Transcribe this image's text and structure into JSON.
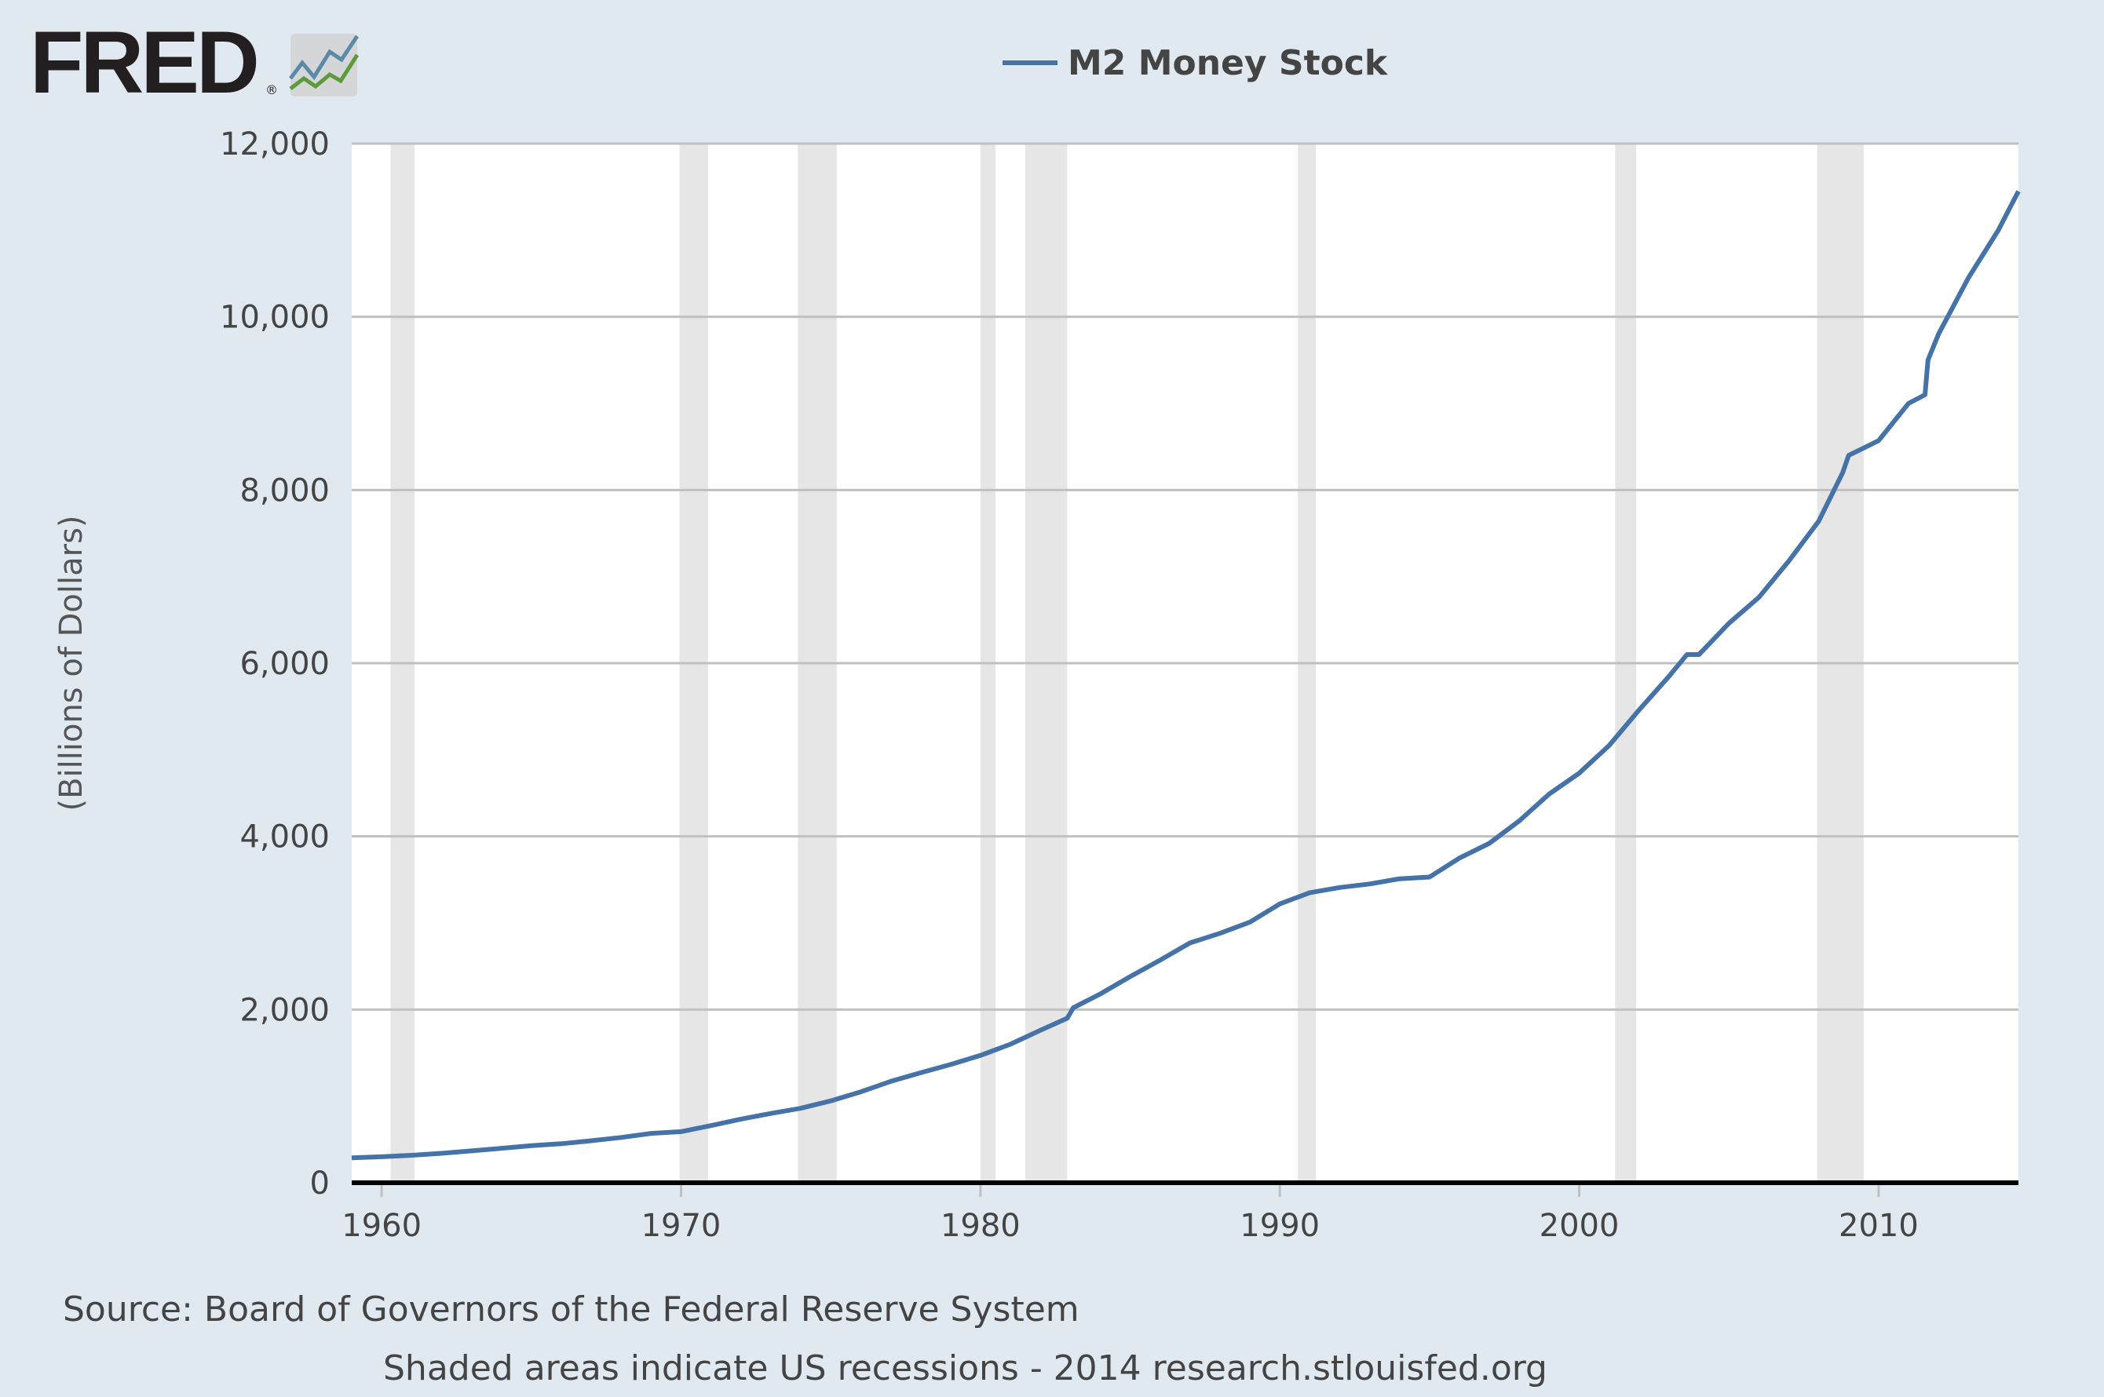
{
  "logo": {
    "text": "FRED",
    "registered": "®"
  },
  "colors": {
    "background": "#e1e9f0",
    "plot": "#ffffff",
    "line": "#4572a7",
    "recession": "#e6e6e6",
    "grid": "#c0c0c0",
    "axis": "#000000"
  },
  "chart_data": {
    "type": "line",
    "title": "",
    "legend": [
      {
        "name": "M2 Money Stock",
        "color": "#4572a7"
      }
    ],
    "legend_position": "top-center",
    "xlabel": "",
    "ylabel": "(Billions of Dollars)",
    "xlim": [
      1959.0,
      2014.67
    ],
    "ylim": [
      0,
      12000
    ],
    "grid": true,
    "x_ticks": [
      1960,
      1970,
      1980,
      1990,
      2000,
      2010
    ],
    "x_tick_labels": [
      "1960",
      "1970",
      "1980",
      "1990",
      "2000",
      "2010"
    ],
    "y_ticks": [
      0,
      2000,
      4000,
      6000,
      8000,
      10000,
      12000
    ],
    "y_tick_labels": [
      "0",
      "2,000",
      "4,000",
      "6,000",
      "8,000",
      "10,000",
      "12,000"
    ],
    "recessions": [
      [
        1960.3,
        1961.1
      ],
      [
        1969.95,
        1970.9
      ],
      [
        1973.9,
        1975.2
      ],
      [
        1980.0,
        1980.5
      ],
      [
        1981.5,
        1982.9
      ],
      [
        1990.6,
        1991.2
      ],
      [
        2001.2,
        2001.9
      ],
      [
        2007.95,
        2009.5
      ]
    ],
    "series": [
      {
        "name": "M2 Money Stock",
        "x": [
          1959.0,
          1960,
          1961,
          1962,
          1963,
          1964,
          1965,
          1966,
          1967,
          1968,
          1969,
          1970,
          1971,
          1972,
          1973,
          1974,
          1975,
          1976,
          1977,
          1978,
          1979,
          1980,
          1981,
          1982,
          1982.9,
          1983.1,
          1984,
          1985,
          1986,
          1987,
          1988,
          1989,
          1990,
          1991,
          1992,
          1993,
          1994,
          1995,
          1996,
          1997,
          1998,
          1999,
          2000,
          2001,
          2002,
          2003,
          2003.6,
          2004,
          2005,
          2006,
          2007,
          2008,
          2008.8,
          2009,
          2010,
          2011,
          2011.55,
          2011.65,
          2012,
          2013,
          2014,
          2014.67
        ],
        "values": [
          287,
          300,
          317,
          340,
          368,
          398,
          428,
          450,
          485,
          523,
          570,
          590,
          660,
          735,
          800,
          860,
          945,
          1050,
          1170,
          1270,
          1365,
          1470,
          1600,
          1760,
          1900,
          2020,
          2180,
          2380,
          2570,
          2770,
          2880,
          3010,
          3220,
          3350,
          3410,
          3450,
          3510,
          3530,
          3750,
          3920,
          4180,
          4490,
          4730,
          5050,
          5460,
          5850,
          6100,
          6100,
          6460,
          6760,
          7180,
          7640,
          8200,
          8400,
          8570,
          9000,
          9100,
          9500,
          9800,
          10450,
          11000,
          11450
        ]
      }
    ]
  },
  "footer": {
    "source": "Source: Board of Governors of the Federal Reserve System",
    "note": "Shaded areas indicate US recessions - 2014 research.stlouisfed.org"
  }
}
